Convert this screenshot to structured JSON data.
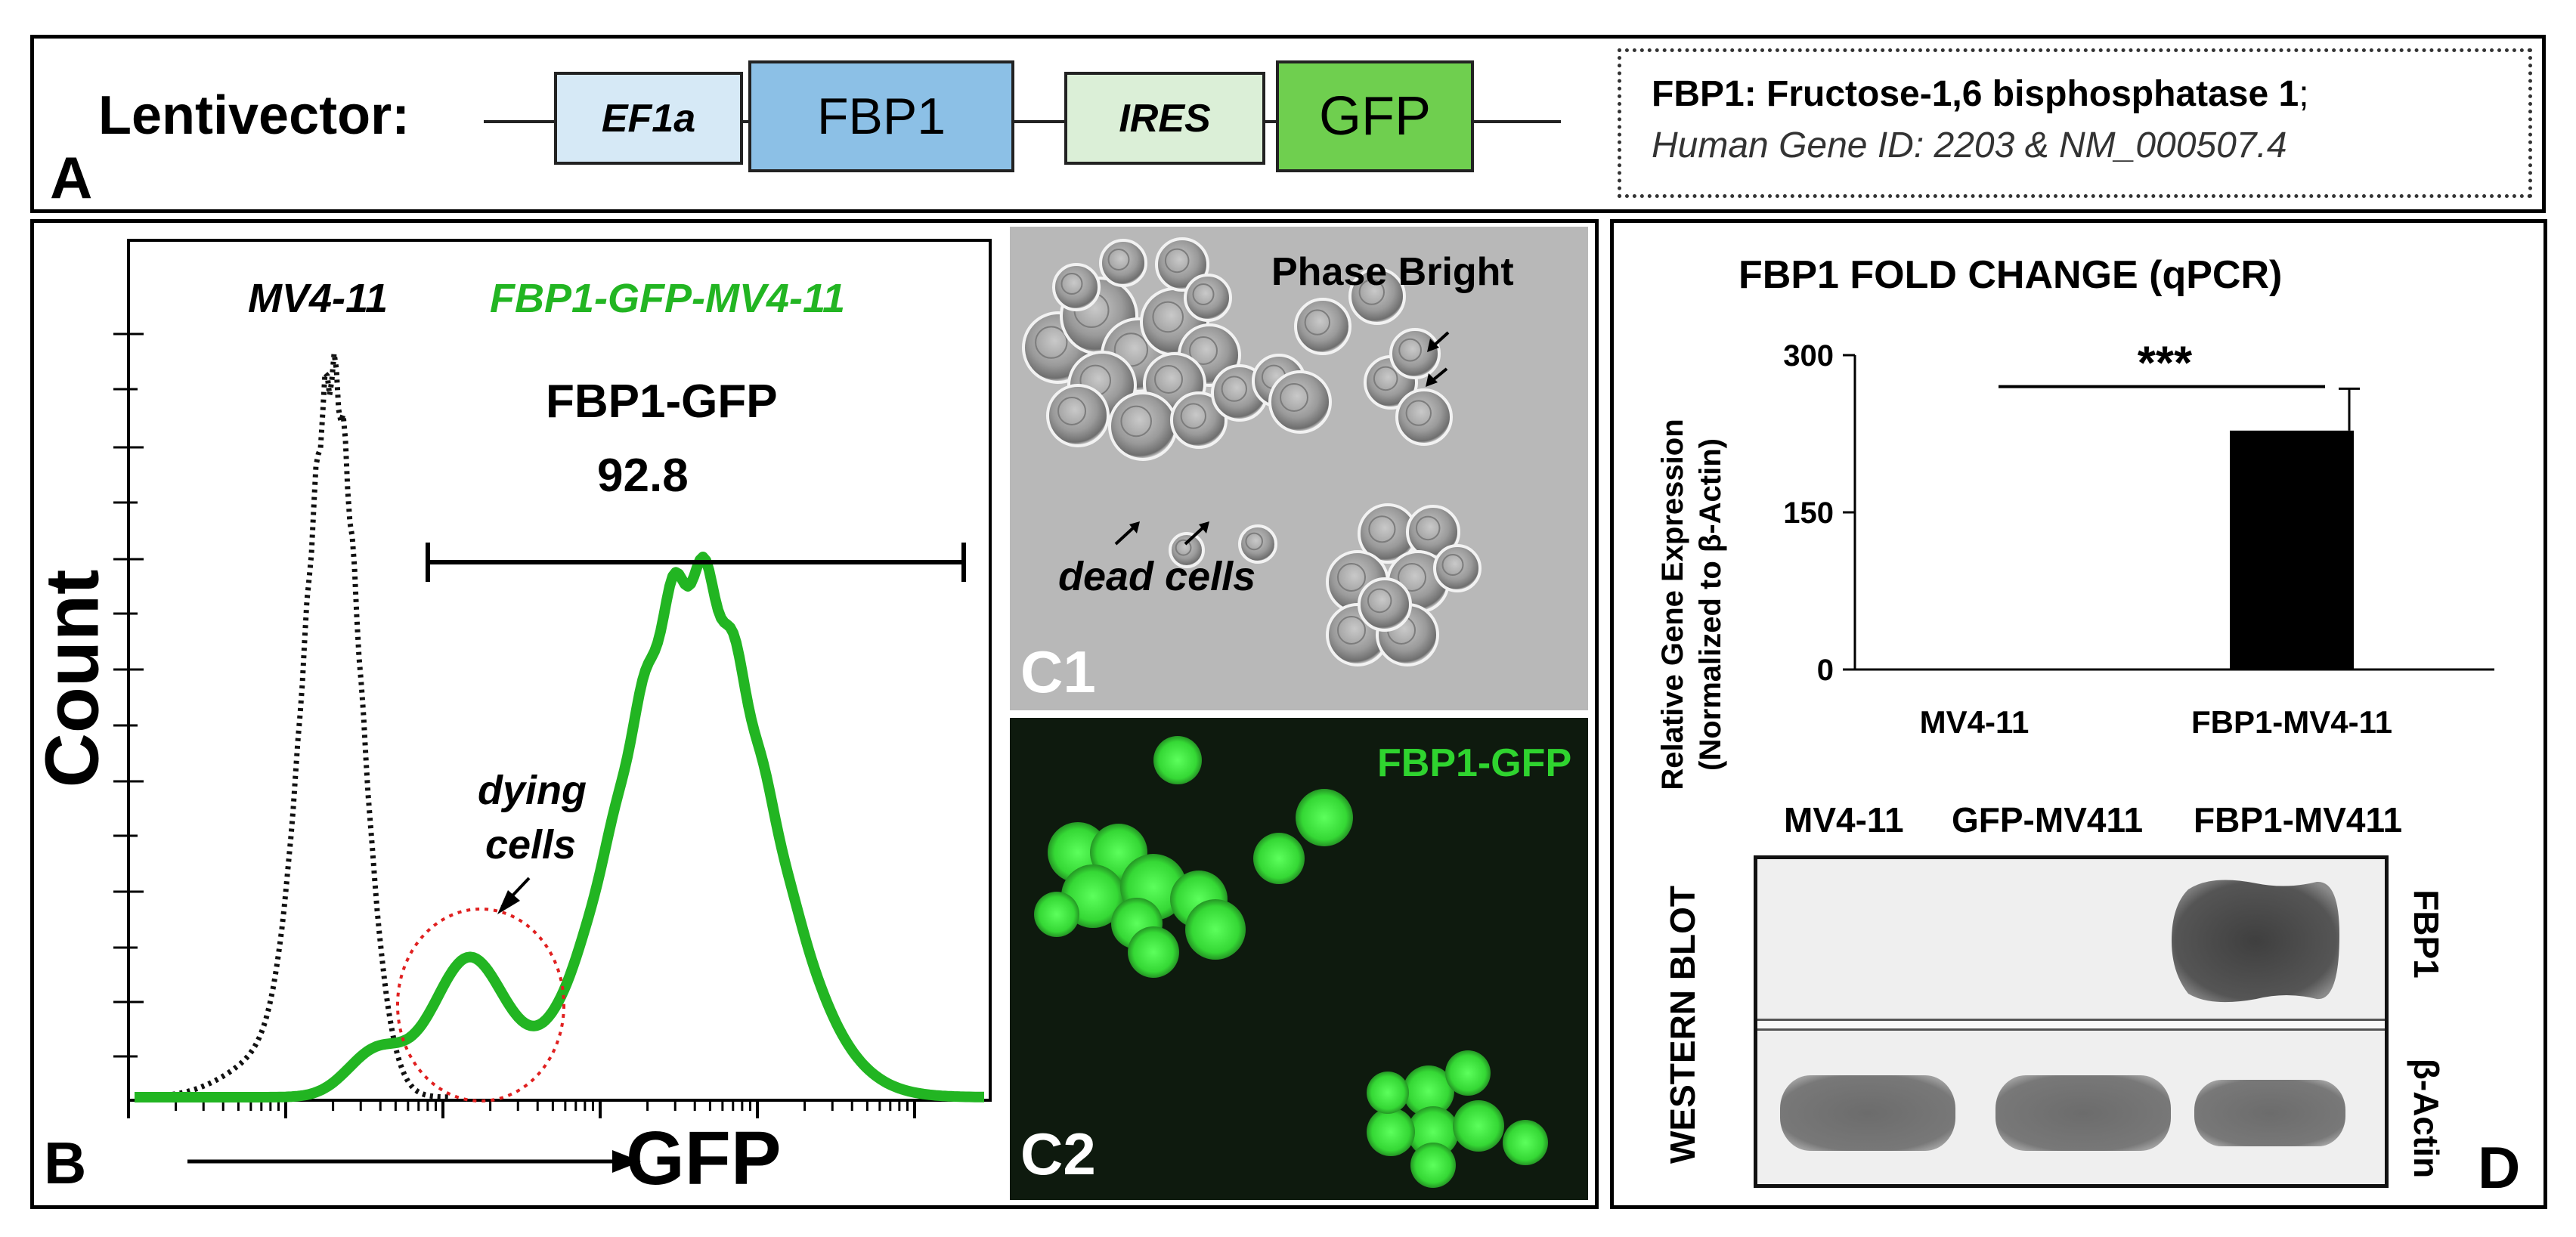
{
  "panel_a": {
    "letter": "A",
    "lentivector_label": "Lentivector:",
    "elements": [
      "EF1a",
      "FBP1",
      "IRES",
      "GFP"
    ],
    "info_line1_bold": "FBP1: Fructose-1,6 bisphosphatase 1",
    "info_line1_end": ";",
    "info_line2": "Human Gene ID: 2203 & NM_000507.4",
    "colors": {
      "ef1a": "#d6e9f6",
      "fbp1": "#8cc0e6",
      "ires": "#dbefd7",
      "gfp": "#6fcf4f"
    }
  },
  "panel_b": {
    "letter": "B",
    "label_control": "MV4-11",
    "label_fbp1": "FBP1-GFP-MV4-11",
    "gate_title": "FBP1-GFP",
    "gate_value": "92.8",
    "annotation": "dying cells",
    "annotation_line1": "dying",
    "annotation_line2": "cells",
    "ylabel": "Count",
    "xlabel": "GFP",
    "colors": {
      "fbp1_series": "#22b522",
      "control_series": "#111111",
      "circle": "#e02020"
    }
  },
  "panel_c1": {
    "letter": "C1",
    "label": "Phase Bright",
    "annotation": "dead cells"
  },
  "panel_c2": {
    "letter": "C2",
    "label": "FBP1-GFP",
    "colors": {
      "text": "#2fd42f",
      "cells": "#3fe03f"
    }
  },
  "panel_d": {
    "letter": "D",
    "chart_title": "FBP1 FOLD CHANGE (qPCR)",
    "ylabel_line1": "Relative Gene Expression",
    "ylabel_line2": "(Normalized to β-Actin)",
    "significance": "***",
    "y_ticks": [
      "300",
      "150",
      "0"
    ],
    "blot_lanes": [
      "MV4-11",
      "GFP-MV411",
      "FBP1-MV411"
    ],
    "blot_title": "WESTERN BLOT",
    "blot_row_labels": [
      "FBP1",
      "β-Actin"
    ]
  },
  "chart_data": {
    "type": "bar",
    "title": "FBP1 FOLD CHANGE (qPCR)",
    "categories": [
      "MV4-11",
      "FBP1-MV4-11"
    ],
    "values": [
      1,
      228
    ],
    "error": [
      0,
      40
    ],
    "ylabel": "Relative Gene Expression (Normalized to β-Actin)",
    "ylim": [
      0,
      300
    ],
    "yticks": [
      0,
      150,
      300
    ],
    "significance": "***"
  }
}
